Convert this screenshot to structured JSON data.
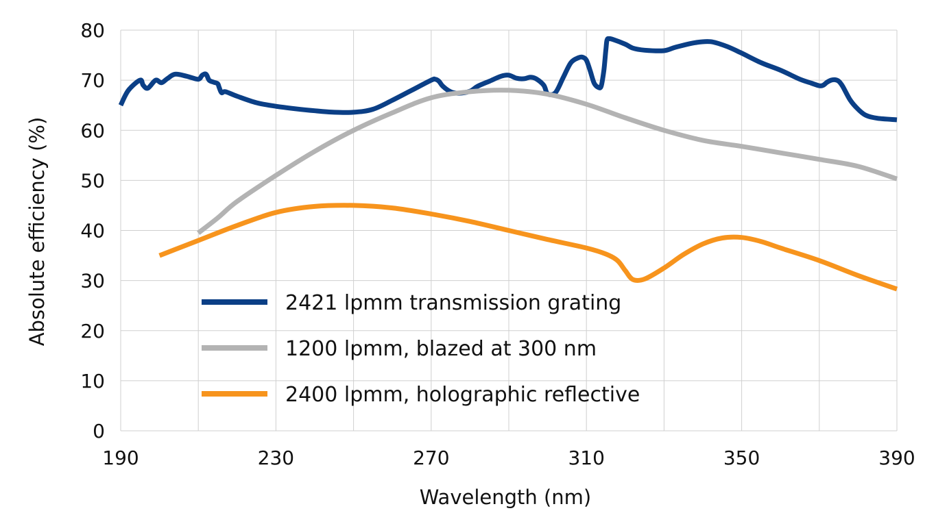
{
  "chart_data": {
    "type": "line",
    "title": "",
    "xlabel": "Wavelength (nm)",
    "ylabel": "Absolute efficiency (%)",
    "xlim": [
      190,
      390
    ],
    "ylim": [
      0,
      80
    ],
    "xticks": [
      190,
      230,
      270,
      310,
      350,
      390
    ],
    "yticks": [
      0,
      10,
      20,
      30,
      40,
      50,
      60,
      70,
      80
    ],
    "x_tick_labels": [
      "190",
      "230",
      "270",
      "310",
      "350",
      "390"
    ],
    "y_tick_labels": [
      "0",
      "10",
      "20",
      "30",
      "40",
      "50",
      "60",
      "70",
      "80"
    ],
    "grid": true,
    "grid_x_step": 20,
    "grid_y_step": 10,
    "legend_position": "lower-center",
    "series": [
      {
        "name": "2421 lpmm transmission grating",
        "color": "#0b3f86",
        "x": [
          190,
          192,
          195,
          195.8,
          197,
          199,
          200.5,
          202,
          204,
          207,
          210,
          211,
          212,
          212.8,
          214,
          215,
          215.4,
          216,
          217,
          220,
          225,
          230,
          235,
          240,
          245,
          250,
          255,
          260,
          265,
          270,
          271,
          272,
          273,
          275,
          277,
          280,
          282,
          285,
          288,
          290,
          292,
          294,
          295.5,
          297,
          299,
          300,
          302,
          304,
          306,
          308,
          309,
          310,
          311,
          312,
          313,
          313.8,
          314.5,
          315,
          315.3,
          315.8,
          317,
          320,
          322,
          325,
          330,
          333,
          338,
          342,
          346,
          350,
          355,
          360,
          365,
          368,
          370,
          371,
          372,
          373,
          374,
          375,
          376,
          378,
          380,
          382,
          385,
          390
        ],
        "y": [
          65,
          68,
          70,
          69,
          68.4,
          70,
          69.5,
          70.3,
          71.2,
          70.8,
          70.2,
          71,
          71.2,
          70,
          69.6,
          69.3,
          68.5,
          67.5,
          67.7,
          66.8,
          65.5,
          64.8,
          64.3,
          63.9,
          63.6,
          63.6,
          64.2,
          66,
          68,
          70,
          70.2,
          69.8,
          68.8,
          67.7,
          67.4,
          67.8,
          68.8,
          69.8,
          70.8,
          71,
          70.4,
          70.3,
          70.6,
          70.3,
          69,
          67.3,
          67.5,
          70.5,
          73.5,
          74.5,
          74.6,
          74,
          71.8,
          69.4,
          68.6,
          68.8,
          72,
          76,
          78,
          78.3,
          78.1,
          77.2,
          76.4,
          76,
          75.9,
          76.6,
          77.5,
          77.7,
          76.8,
          75.4,
          73.5,
          72,
          70.2,
          69.4,
          68.9,
          69,
          69.6,
          70,
          70.1,
          69.8,
          68.8,
          66,
          64.2,
          63,
          62.4,
          62.1
        ]
      },
      {
        "name": "1200 lpmm, blazed at 300 nm",
        "color": "#b3b3b3",
        "x": [
          210,
          215,
          220,
          230,
          240,
          250,
          260,
          270,
          280,
          290,
          300,
          310,
          320,
          330,
          340,
          350,
          360,
          370,
          380,
          390
        ],
        "y": [
          39.5,
          42.5,
          45.8,
          51,
          55.8,
          60,
          63.5,
          66.5,
          67.7,
          68,
          67.2,
          65.2,
          62.5,
          60,
          58,
          56.8,
          55.5,
          54.2,
          52.8,
          50.3
        ]
      },
      {
        "name": "2400 lpmm, holographic reflective",
        "color": "#f7941d",
        "x": [
          200,
          210,
          220,
          230,
          240,
          250,
          260,
          270,
          280,
          290,
          300,
          310,
          315,
          318,
          320,
          322,
          325,
          330,
          335,
          340,
          345,
          350,
          355,
          360,
          370,
          380,
          390
        ],
        "y": [
          35,
          38,
          41,
          43.6,
          44.8,
          45,
          44.5,
          43.3,
          41.8,
          40,
          38.2,
          36.5,
          35.3,
          34,
          32,
          30.2,
          30.3,
          32.5,
          35.2,
          37.3,
          38.5,
          38.6,
          37.8,
          36.5,
          34,
          31,
          28.3
        ]
      }
    ]
  }
}
